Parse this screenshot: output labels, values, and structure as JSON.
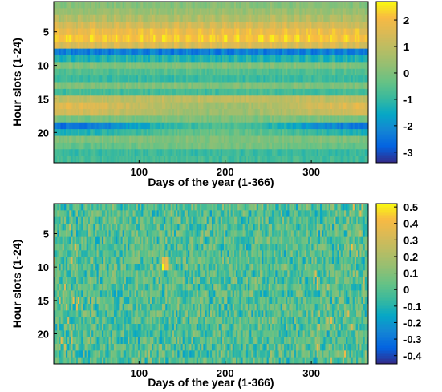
{
  "chart_data": [
    {
      "type": "heatmap",
      "xlabel": "Days of the year (1-366)",
      "ylabel": "Hour slots (1-24)",
      "x_range": [
        1,
        366
      ],
      "y_range": [
        1,
        24
      ],
      "y_reversed": true,
      "x_ticks": [
        100,
        200,
        300
      ],
      "y_ticks": [
        5,
        10,
        15,
        20
      ],
      "colorbar": {
        "range": [
          -3.4,
          2.7
        ],
        "ticks": [
          "2",
          "1",
          "0",
          "-1",
          "-2",
          "-3"
        ],
        "tick_values": [
          2,
          1,
          0,
          -1,
          -2,
          -3
        ]
      },
      "colormap": "parula",
      "pattern": {
        "hour_profile": [
          0.1,
          0.4,
          0.8,
          1.4,
          1.9,
          2.2,
          1.5,
          -2.3,
          -1.2,
          0.0,
          -0.6,
          -0.9,
          0.0,
          -0.8,
          1.0,
          1.3,
          1.1,
          -0.1,
          -2.0,
          -1.0,
          0.0,
          -0.3,
          -0.9,
          -0.8
        ],
        "seasonal_modulation": "evening hours (16-22) strong in winter (days 1-90 and 300-366), weak in summer"
      }
    },
    {
      "type": "heatmap",
      "xlabel": "Days of the year (1-366)",
      "ylabel": "Hour slots (1-24)",
      "x_range": [
        1,
        366
      ],
      "y_range": [
        1,
        24
      ],
      "y_reversed": true,
      "x_ticks": [
        100,
        200,
        300
      ],
      "y_ticks": [
        5,
        10,
        15,
        20
      ],
      "colorbar": {
        "range": [
          -0.45,
          0.52
        ],
        "ticks": [
          "0.5",
          "0.4",
          "0.3",
          "0.2",
          "0.1",
          "0",
          "-0.1",
          "-0.2",
          "-0.3",
          "-0.4"
        ],
        "tick_values": [
          0.5,
          0.4,
          0.3,
          0.2,
          0.1,
          0,
          -0.1,
          -0.2,
          -0.3,
          -0.4
        ]
      },
      "colormap": "parula",
      "pattern": {
        "description": "residual noise near 0, extremes up to 0.5 around hour 10 near day 130"
      }
    }
  ]
}
